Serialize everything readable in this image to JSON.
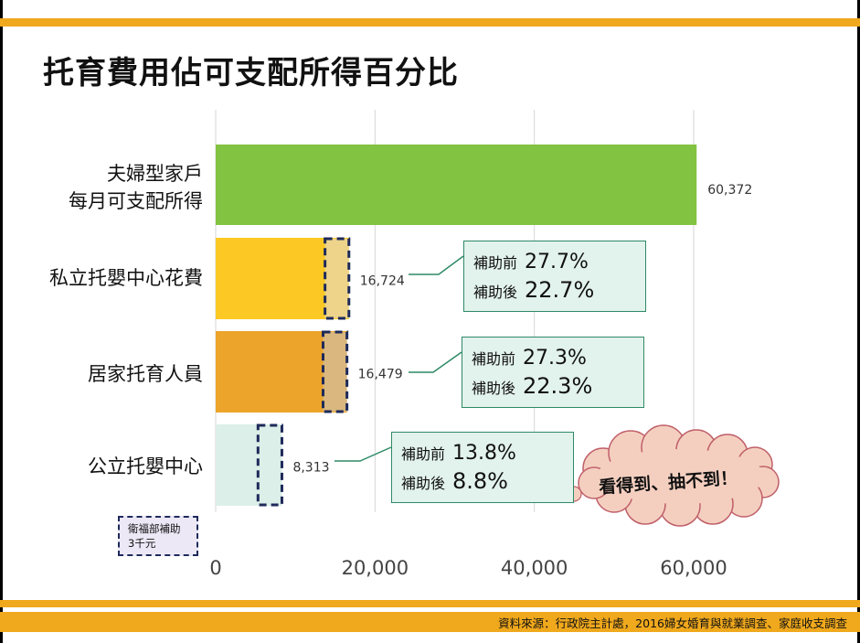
{
  "title": "托育費用佔可支配所得百分比",
  "source": "資料來源：行政院主計處，2016婦女婚育與就業調查、家庭收支調查",
  "colors": {
    "accent_bar": "#f0a81c",
    "green": "#82c341",
    "yellow": "#fcc924",
    "orange": "#eda42a",
    "light_teal": "#dcefe8",
    "subsidy_fill_yellow": "#edd48a",
    "subsidy_fill_orange": "#d9b77e",
    "dash_border": "#1e2a5a",
    "callout_fill": "#e2f2ec",
    "callout_border": "#2e8a66",
    "cloud_fill": "#f4cfc0",
    "cloud_border": "#c0606a"
  },
  "chart_data": {
    "type": "bar",
    "orientation": "horizontal",
    "categories": [
      "夫婦型家戶\n每月可支配所得",
      "私立托嬰中心花費",
      "居家托育人員",
      "公立托嬰中心"
    ],
    "values": [
      60372,
      16724,
      16479,
      8313
    ],
    "value_labels": [
      "60,372",
      "16,724",
      "16,479",
      "8,313"
    ],
    "subsidy": 3000,
    "xlim": [
      0,
      60000
    ],
    "xticks": [
      0,
      20000,
      40000,
      60000
    ],
    "xtick_labels": [
      "0",
      "20,000",
      "40,000",
      "60,000"
    ],
    "grid": true
  },
  "category_lines": [
    [
      "夫婦型家戶",
      "每月可支配所得"
    ],
    [
      "私立托嬰中心花費"
    ],
    [
      "居家托育人員"
    ],
    [
      "公立托嬰中心"
    ]
  ],
  "callouts": [
    {
      "before_label": "補助前",
      "before": "27.7%",
      "after_label": "補助後",
      "after": "22.7%"
    },
    {
      "before_label": "補助前",
      "before": "27.3%",
      "after_label": "補助後",
      "after": "22.3%"
    },
    {
      "before_label": "補助前",
      "before": "13.8%",
      "after_label": "補助後",
      "after": "8.8%"
    }
  ],
  "note": {
    "line1": "衛福部補助",
    "line2": "3千元"
  },
  "cloud": {
    "text": "看得到、抽不到！"
  }
}
